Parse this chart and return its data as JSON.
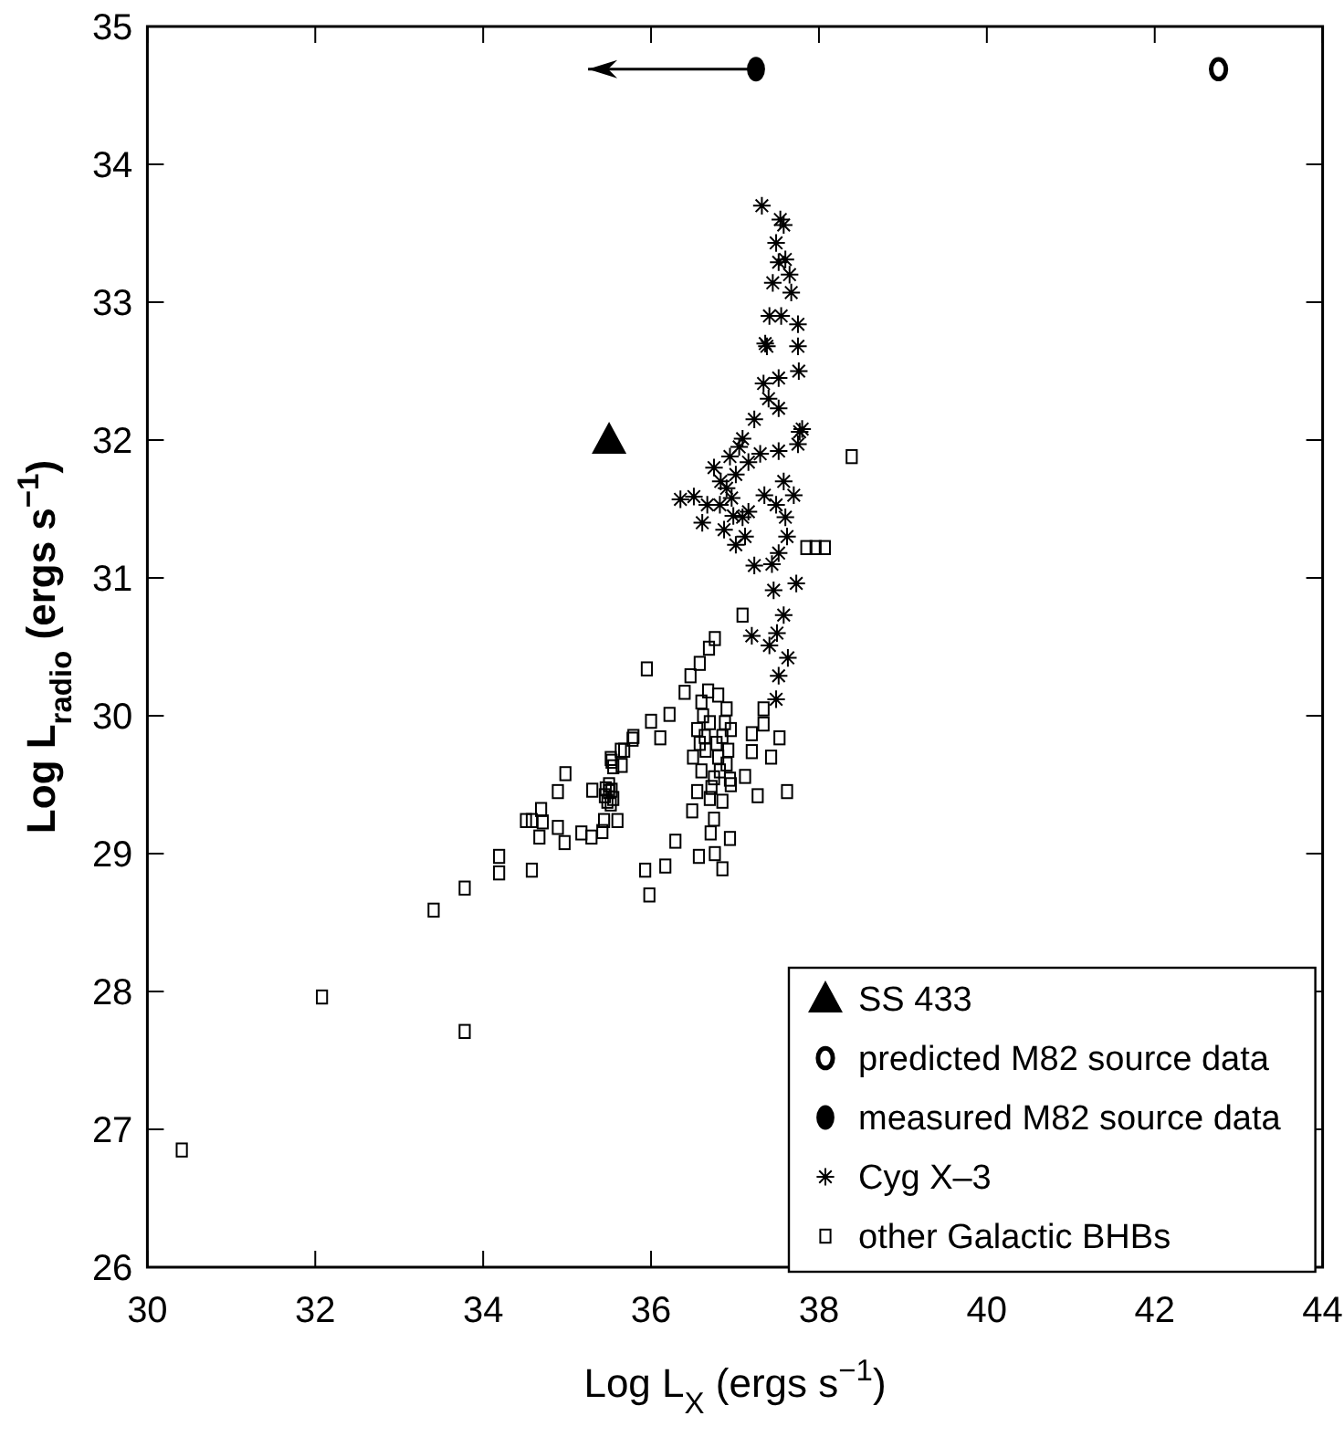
{
  "chart_data": {
    "type": "scatter",
    "xlabel": "Log L$_{X}$ (ergs s$^{−1}$)",
    "ylabel": "Log L$_{radio}$ (ergs s$^{−1}$)",
    "xlim": [
      30,
      44
    ],
    "xticks": [
      30,
      32,
      34,
      36,
      38,
      40,
      42,
      44
    ],
    "ylim": [
      26,
      35
    ],
    "yticks": [
      26,
      27,
      28,
      29,
      30,
      31,
      32,
      33,
      34,
      35
    ],
    "grid": false,
    "legend": "bottom right",
    "series": [
      {
        "name": "SS 433",
        "color": "#000000",
        "marker": "triangle",
        "x": [
          35.5
        ],
        "values": [
          32.0
        ]
      },
      {
        "name": "predicted M82 source data",
        "color": "#000000",
        "marker": "circle-open",
        "x": [
          42.76
        ],
        "values": [
          34.69
        ]
      },
      {
        "name": "measured M82 source data",
        "color": "#000000",
        "marker": "circle",
        "x": [
          37.25
        ],
        "values": [
          34.69
        ],
        "xerrors": [
          [
            35.25,
            37.25
          ]
        ]
      },
      {
        "name": "Cyg X–3",
        "color": "#000000",
        "marker": "cross",
        "x": [
          37.32,
          37.54,
          37.58,
          37.49,
          37.52,
          37.6,
          37.45,
          37.67,
          37.41,
          37.75,
          37.38,
          37.75,
          37.52,
          37.34,
          37.76,
          37.52,
          37.77,
          37.23,
          37.09,
          36.94,
          36.83,
          36.82,
          36.87,
          37.01,
          37.16,
          37.16,
          37.01,
          36.96,
          37.09,
          36.67,
          36.51,
          36.35,
          36.61,
          37.23,
          37.52,
          37.58,
          37.49,
          37.6,
          37.52,
          37.73,
          37.46,
          37.58,
          37.2,
          37.41,
          37.63,
          37.52,
          37.49,
          37.75,
          37.8,
          37.05,
          36.9,
          36.75,
          37.12,
          36.98,
          37.3,
          37.35,
          37.62,
          37.44,
          37.55,
          37.65,
          37.4,
          37.7,
          37.5,
          37.36
        ],
        "values": [
          33.7,
          33.6,
          33.56,
          33.43,
          33.29,
          33.31,
          33.14,
          33.07,
          32.9,
          32.84,
          32.68,
          32.68,
          32.45,
          32.41,
          32.5,
          32.23,
          32.06,
          32.15,
          32.01,
          31.88,
          31.7,
          31.53,
          31.35,
          31.24,
          31.48,
          31.84,
          31.75,
          31.58,
          31.44,
          31.53,
          31.59,
          31.57,
          31.4,
          31.09,
          31.92,
          31.7,
          31.53,
          31.44,
          31.18,
          30.96,
          30.91,
          30.73,
          30.58,
          30.51,
          30.42,
          30.29,
          30.12,
          31.97,
          32.08,
          31.95,
          31.65,
          31.8,
          31.3,
          31.45,
          31.9,
          31.6,
          31.3,
          31.1,
          32.9,
          33.2,
          32.3,
          31.6,
          30.6,
          32.7
        ]
      },
      {
        "name": "other Galactic BHBs",
        "color": "#000000",
        "marker": "square-open",
        "x": [
          30.41,
          32.08,
          33.41,
          33.78,
          33.78,
          34.19,
          34.19,
          34.58,
          34.51,
          34.58,
          34.67,
          34.69,
          34.71,
          34.89,
          34.97,
          34.89,
          34.98,
          35.17,
          35.29,
          35.42,
          35.44,
          35.6,
          35.3,
          35.52,
          35.55,
          35.65,
          35.68,
          35.79,
          35.45,
          35.5,
          35.55,
          35.48,
          35.52,
          35.46,
          35.53,
          35.5,
          35.95,
          36.22,
          36.0,
          36.11,
          35.78,
          35.64,
          35.53,
          37.09,
          36.76,
          36.69,
          36.58,
          36.47,
          36.4,
          37.2,
          37.34,
          37.34,
          37.53,
          37.43,
          37.2,
          37.12,
          37.27,
          37.62,
          36.94,
          36.49,
          36.29,
          36.75,
          36.71,
          36.94,
          36.57,
          36.76,
          36.85,
          36.17,
          35.93,
          35.98,
          38.39,
          37.85,
          37.96,
          38.07,
          36.6,
          36.8,
          36.9,
          36.7,
          36.55,
          36.85,
          36.95,
          36.65,
          36.8,
          36.9,
          36.6,
          36.75,
          36.95,
          36.55,
          36.7,
          36.85,
          36.62,
          36.78,
          36.92,
          36.5,
          36.68,
          36.82,
          36.58,
          36.88,
          36.72,
          36.64
        ],
        "values": [
          26.85,
          27.96,
          28.59,
          28.75,
          27.71,
          28.98,
          28.86,
          28.88,
          29.24,
          29.24,
          29.12,
          29.32,
          29.23,
          29.19,
          29.08,
          29.45,
          29.58,
          29.15,
          29.12,
          29.16,
          29.24,
          29.24,
          29.46,
          29.69,
          29.63,
          29.64,
          29.75,
          29.85,
          29.42,
          29.45,
          29.4,
          29.38,
          29.36,
          29.47,
          29.46,
          29.5,
          30.34,
          30.01,
          29.96,
          29.84,
          29.83,
          29.75,
          29.67,
          30.73,
          30.56,
          30.49,
          30.38,
          30.29,
          30.17,
          29.87,
          29.94,
          30.05,
          29.84,
          29.7,
          29.74,
          29.56,
          29.42,
          29.45,
          29.54,
          29.31,
          29.09,
          29.25,
          29.15,
          29.11,
          28.98,
          29.0,
          28.89,
          28.91,
          28.88,
          28.7,
          31.88,
          31.22,
          31.22,
          31.22,
          30.1,
          30.15,
          30.05,
          29.95,
          29.9,
          29.85,
          29.9,
          29.75,
          29.7,
          29.65,
          29.6,
          29.55,
          29.5,
          29.45,
          29.4,
          29.38,
          30.0,
          29.8,
          29.75,
          29.7,
          30.18,
          29.6,
          29.8,
          29.95,
          29.48,
          29.85
        ]
      }
    ]
  }
}
